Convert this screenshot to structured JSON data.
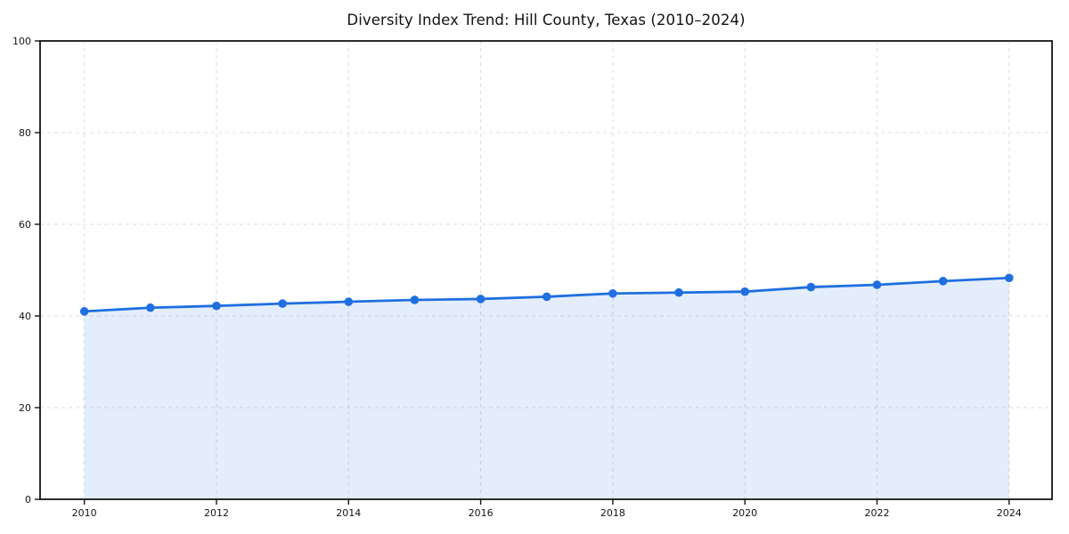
{
  "page": {
    "background": "#ffffff"
  },
  "chart_data": {
    "type": "line",
    "title": "Diversity Index Trend: Hill County, Texas (2010–2024)",
    "x": [
      2010,
      2011,
      2012,
      2013,
      2014,
      2015,
      2016,
      2017,
      2018,
      2019,
      2020,
      2021,
      2022,
      2023,
      2024
    ],
    "series": [
      {
        "name": "Diversity Index",
        "values": [
          41.0,
          41.8,
          42.2,
          42.7,
          43.1,
          43.5,
          43.7,
          44.2,
          44.9,
          45.1,
          45.3,
          46.3,
          46.8,
          47.6,
          48.3
        ]
      }
    ],
    "xlabel": "",
    "ylabel": "",
    "xticks": [
      2010,
      2012,
      2014,
      2016,
      2018,
      2020,
      2022,
      2024
    ],
    "yticks": [
      0,
      20,
      40,
      60,
      80,
      100
    ],
    "xlim": [
      2009.33,
      2024.65
    ],
    "ylim": [
      0,
      100
    ],
    "grid": true,
    "grid_style": "dashed",
    "legend_position": "none",
    "area_fill": true,
    "marker": "circle",
    "colors": {
      "line": "#1f6fe0",
      "marker": "#1f6fe0",
      "area_fill": "rgba(31,111,224,0.12)",
      "grid": "#dcdcdc",
      "spine": "#141414",
      "tick_text": "#141414",
      "title_text": "#111111"
    }
  }
}
